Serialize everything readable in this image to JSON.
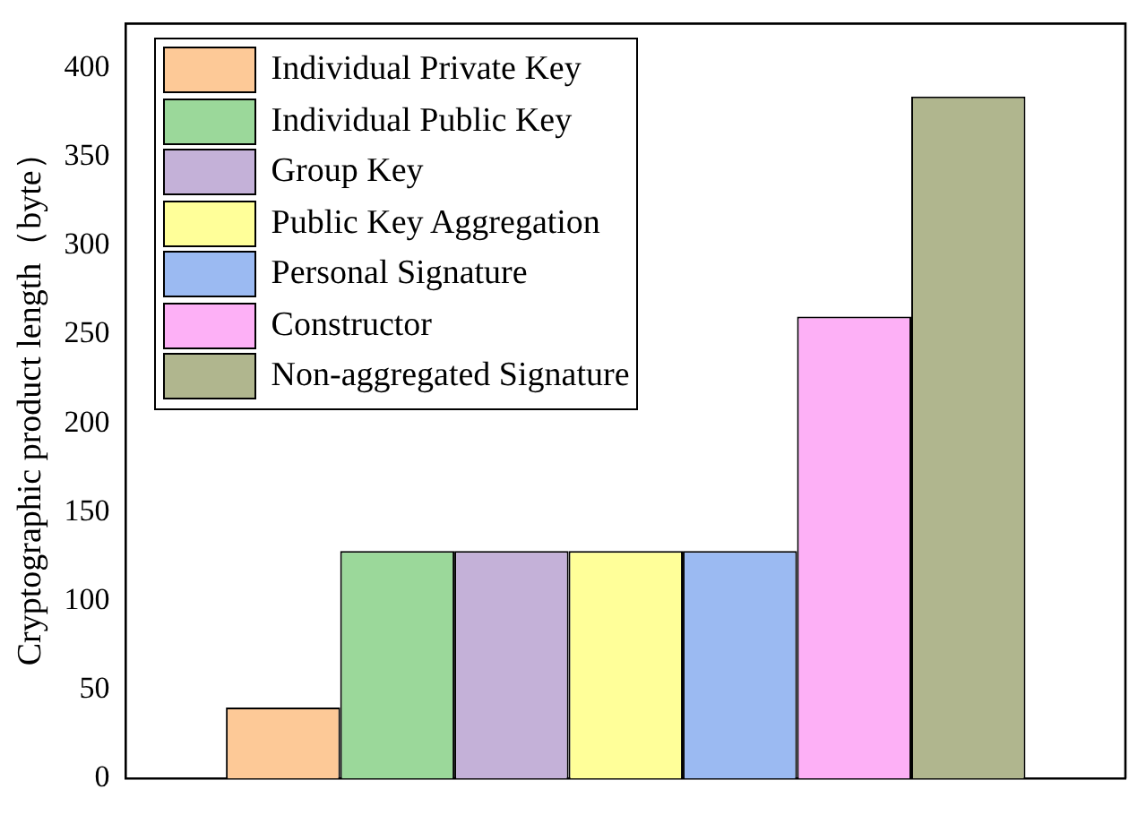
{
  "chart_data": {
    "type": "bar",
    "ylabel": "Cryptographic product length（byte）",
    "categories": [
      null
    ],
    "series": [
      {
        "name": "Individual Private Key",
        "color": "#fdc997",
        "values": [
          40
        ]
      },
      {
        "name": "Individual Public Key",
        "color": "#9bd89a",
        "values": [
          128
        ]
      },
      {
        "name": "Group Key",
        "color": "#c4b1d8",
        "values": [
          128
        ]
      },
      {
        "name": "Public Key Aggregation",
        "color": "#ffff99",
        "values": [
          128
        ]
      },
      {
        "name": "Personal Signature",
        "color": "#9bbaf2",
        "values": [
          128
        ]
      },
      {
        "name": "Constructor",
        "color": "#fdb0f6",
        "values": [
          260
        ]
      },
      {
        "name": "Non-aggregated Signature",
        "color": "#b0b68e",
        "values": [
          384
        ]
      }
    ],
    "ylim": [
      0,
      425
    ],
    "yticks": [
      0,
      50,
      100,
      150,
      200,
      250,
      300,
      350,
      400
    ],
    "grid": false,
    "legend": "top left"
  }
}
